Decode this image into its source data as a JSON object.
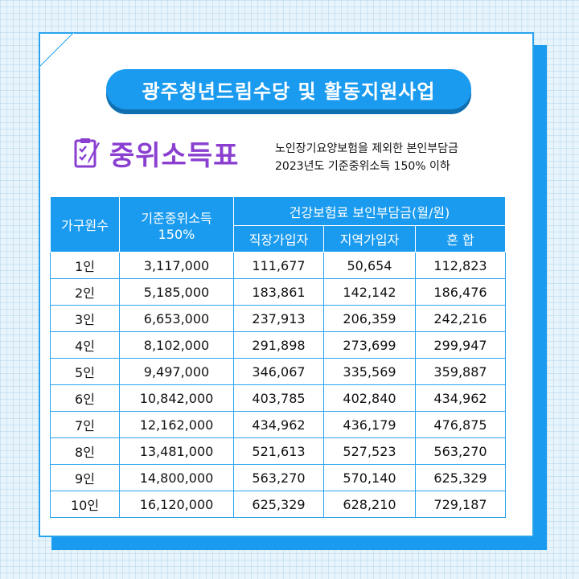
{
  "title": "광주청년드림수당 및 활동지원사업",
  "section": {
    "title": "중위소득표",
    "icon": "checklist-pencil-icon"
  },
  "note": {
    "line1": "노인장기요양보험을 제외한 본인부담금",
    "line2": "2023년도 기준중위소득 150% 이하"
  },
  "table": {
    "headers": {
      "household": "가구원수",
      "income": "기준중위소득",
      "income_pct": "150%",
      "insurance": "건강보험료 보인부담금(월/원)",
      "employee": "직장가입자",
      "regional": "지역가입자",
      "mixed": "혼  합"
    },
    "rows": [
      [
        "1인",
        "3,117,000",
        "111,677",
        "50,654",
        "112,823"
      ],
      [
        "2인",
        "5,185,000",
        "183,861",
        "142,142",
        "186,476"
      ],
      [
        "3인",
        "6,653,000",
        "237,913",
        "206,359",
        "242,216"
      ],
      [
        "4인",
        "8,102,000",
        "291,898",
        "273,699",
        "299,947"
      ],
      [
        "5인",
        "9,497,000",
        "346,067",
        "335,569",
        "359,887"
      ],
      [
        "6인",
        "10,842,000",
        "403,785",
        "402,840",
        "434,962"
      ],
      [
        "7인",
        "12,162,000",
        "434,962",
        "436,179",
        "476,875"
      ],
      [
        "8인",
        "13,481,000",
        "521,613",
        "527,523",
        "563,270"
      ],
      [
        "9인",
        "14,800,000",
        "563,270",
        "570,140",
        "625,329"
      ],
      [
        "10인",
        "16,120,000",
        "625,329",
        "628,210",
        "729,187"
      ]
    ]
  },
  "colors": {
    "accent_blue": "#1a9bef",
    "accent_purple": "#8a3fd1"
  }
}
